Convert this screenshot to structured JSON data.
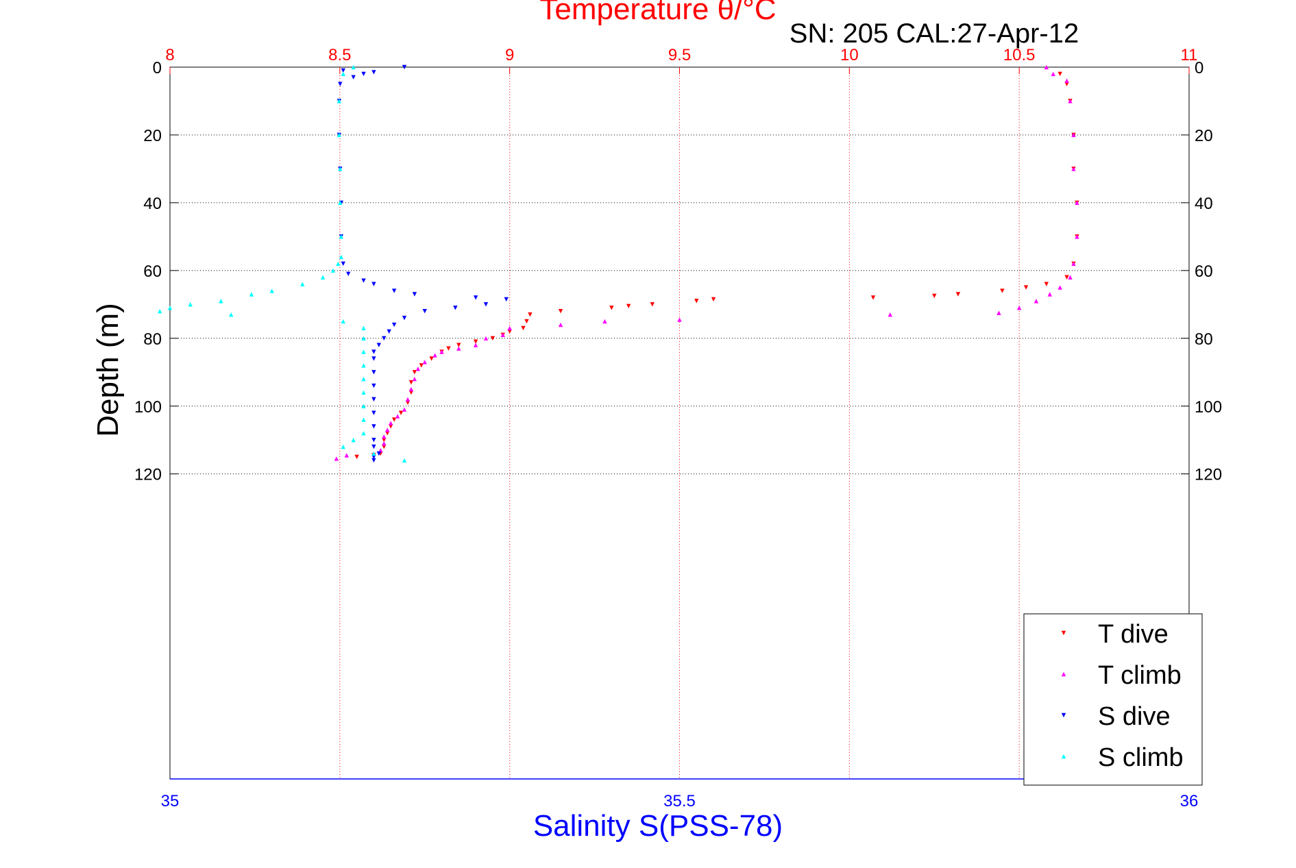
{
  "chart_data": {
    "type": "scatter",
    "title": "Temperature θ/°C",
    "subtitle": "SN: 205  CAL:27-Apr-12",
    "ylabel": "Depth (m)",
    "xlabel_bottom": "Salinity S(PSS-78)",
    "top_axis": {
      "label": "Temperature θ/°C",
      "range": [
        8,
        11
      ],
      "ticks": [
        "8",
        "8.5",
        "9",
        "9.5",
        "10",
        "10.5",
        "11"
      ],
      "color": "#ff0000"
    },
    "bottom_axis": {
      "label": "Salinity S(PSS-78)",
      "range": [
        35,
        36
      ],
      "ticks": [
        "35",
        "35.5",
        "36"
      ],
      "color": "#0000ff"
    },
    "y_axis": {
      "range": [
        0,
        210
      ],
      "reversed": true,
      "ticks": [
        "0",
        "20",
        "40",
        "60",
        "80",
        "100",
        "120"
      ]
    },
    "grid": true,
    "legend_placement": "bottom-right",
    "series": [
      {
        "name": "T dive",
        "axis": "temperature",
        "marker": "triangle-down",
        "color": "#ff0000",
        "points": [
          [
            10.62,
            2
          ],
          [
            10.64,
            5
          ],
          [
            10.65,
            10
          ],
          [
            10.66,
            20
          ],
          [
            10.66,
            30
          ],
          [
            10.67,
            40
          ],
          [
            10.67,
            50
          ],
          [
            10.66,
            58
          ],
          [
            10.64,
            62
          ],
          [
            10.58,
            64
          ],
          [
            10.52,
            65
          ],
          [
            10.45,
            66
          ],
          [
            10.32,
            67
          ],
          [
            10.25,
            67.5
          ],
          [
            10.07,
            68
          ],
          [
            9.6,
            68.5
          ],
          [
            9.55,
            69
          ],
          [
            9.42,
            70
          ],
          [
            9.35,
            70.5
          ],
          [
            9.3,
            71
          ],
          [
            9.15,
            72
          ],
          [
            9.06,
            73
          ],
          [
            9.05,
            75
          ],
          [
            9.04,
            77
          ],
          [
            9.0,
            78
          ],
          [
            8.98,
            79
          ],
          [
            8.95,
            80
          ],
          [
            8.9,
            81
          ],
          [
            8.85,
            82
          ],
          [
            8.82,
            83
          ],
          [
            8.8,
            84
          ],
          [
            8.77,
            86
          ],
          [
            8.74,
            88
          ],
          [
            8.72,
            90
          ],
          [
            8.71,
            93
          ],
          [
            8.71,
            96
          ],
          [
            8.7,
            99
          ],
          [
            8.68,
            102
          ],
          [
            8.66,
            104
          ],
          [
            8.65,
            106
          ],
          [
            8.64,
            108
          ],
          [
            8.63,
            110
          ],
          [
            8.63,
            112
          ],
          [
            8.62,
            114
          ],
          [
            8.6,
            114.5
          ],
          [
            8.55,
            115
          ]
        ]
      },
      {
        "name": "T climb",
        "axis": "temperature",
        "marker": "triangle-up",
        "color": "#ff00ff",
        "points": [
          [
            10.58,
            0
          ],
          [
            10.6,
            2
          ],
          [
            10.64,
            4
          ],
          [
            10.65,
            10
          ],
          [
            10.66,
            20
          ],
          [
            10.66,
            30
          ],
          [
            10.67,
            40
          ],
          [
            10.67,
            50
          ],
          [
            10.66,
            58
          ],
          [
            10.65,
            62
          ],
          [
            10.62,
            65
          ],
          [
            10.59,
            67
          ],
          [
            10.55,
            69
          ],
          [
            10.5,
            71
          ],
          [
            10.44,
            72.5
          ],
          [
            10.12,
            73
          ],
          [
            9.5,
            74.5
          ],
          [
            9.28,
            75
          ],
          [
            9.15,
            76
          ],
          [
            9.0,
            77
          ],
          [
            8.98,
            79
          ],
          [
            8.93,
            80
          ],
          [
            8.9,
            82
          ],
          [
            8.85,
            83
          ],
          [
            8.8,
            84
          ],
          [
            8.78,
            85
          ],
          [
            8.75,
            87
          ],
          [
            8.73,
            89
          ],
          [
            8.72,
            92
          ],
          [
            8.71,
            95
          ],
          [
            8.7,
            98
          ],
          [
            8.69,
            101
          ],
          [
            8.67,
            103
          ],
          [
            8.65,
            105
          ],
          [
            8.64,
            107
          ],
          [
            8.63,
            109
          ],
          [
            8.63,
            111
          ],
          [
            8.62,
            113
          ],
          [
            8.6,
            114
          ],
          [
            8.52,
            114.5
          ],
          [
            8.49,
            115.5
          ]
        ]
      },
      {
        "name": "S dive",
        "axis": "salinity",
        "marker": "triangle-down",
        "color": "#0000ff",
        "points": [
          [
            35.23,
            0
          ],
          [
            35.17,
            1
          ],
          [
            35.2,
            1.5
          ],
          [
            35.19,
            2
          ],
          [
            35.18,
            3
          ],
          [
            35.167,
            5
          ],
          [
            35.166,
            10
          ],
          [
            35.166,
            20
          ],
          [
            35.167,
            30
          ],
          [
            35.168,
            40
          ],
          [
            35.168,
            50
          ],
          [
            35.17,
            58
          ],
          [
            35.175,
            61
          ],
          [
            35.19,
            63
          ],
          [
            35.2,
            64
          ],
          [
            35.22,
            66
          ],
          [
            35.24,
            67
          ],
          [
            35.3,
            68
          ],
          [
            35.33,
            68.5
          ],
          [
            35.31,
            70
          ],
          [
            35.28,
            71
          ],
          [
            35.25,
            72
          ],
          [
            35.23,
            74
          ],
          [
            35.22,
            76
          ],
          [
            35.215,
            78
          ],
          [
            35.21,
            80
          ],
          [
            35.205,
            82
          ],
          [
            35.2,
            84
          ],
          [
            35.2,
            86
          ],
          [
            35.2,
            90
          ],
          [
            35.2,
            94
          ],
          [
            35.2,
            98
          ],
          [
            35.2,
            102
          ],
          [
            35.2,
            106
          ],
          [
            35.2,
            110
          ],
          [
            35.2,
            112
          ],
          [
            35.205,
            114
          ],
          [
            35.2,
            115
          ],
          [
            35.2,
            116
          ]
        ]
      },
      {
        "name": "S climb",
        "axis": "salinity",
        "marker": "triangle-up",
        "color": "#00ffff",
        "points": [
          [
            35.18,
            0
          ],
          [
            35.17,
            2
          ],
          [
            35.166,
            10
          ],
          [
            35.166,
            20
          ],
          [
            35.167,
            30
          ],
          [
            35.167,
            40
          ],
          [
            35.168,
            50
          ],
          [
            35.168,
            56
          ],
          [
            35.165,
            58
          ],
          [
            35.16,
            60
          ],
          [
            35.15,
            62
          ],
          [
            35.13,
            64
          ],
          [
            35.1,
            66
          ],
          [
            35.08,
            67
          ],
          [
            35.05,
            69
          ],
          [
            35.02,
            70
          ],
          [
            35.0,
            71
          ],
          [
            34.99,
            72
          ],
          [
            35.06,
            73
          ],
          [
            35.17,
            75
          ],
          [
            35.19,
            77
          ],
          [
            35.19,
            80
          ],
          [
            35.19,
            84
          ],
          [
            35.19,
            88
          ],
          [
            35.19,
            92
          ],
          [
            35.19,
            96
          ],
          [
            35.19,
            100
          ],
          [
            35.19,
            104
          ],
          [
            35.19,
            108
          ],
          [
            35.18,
            110
          ],
          [
            35.17,
            112
          ],
          [
            35.2,
            114
          ],
          [
            35.23,
            116
          ]
        ]
      }
    ]
  }
}
